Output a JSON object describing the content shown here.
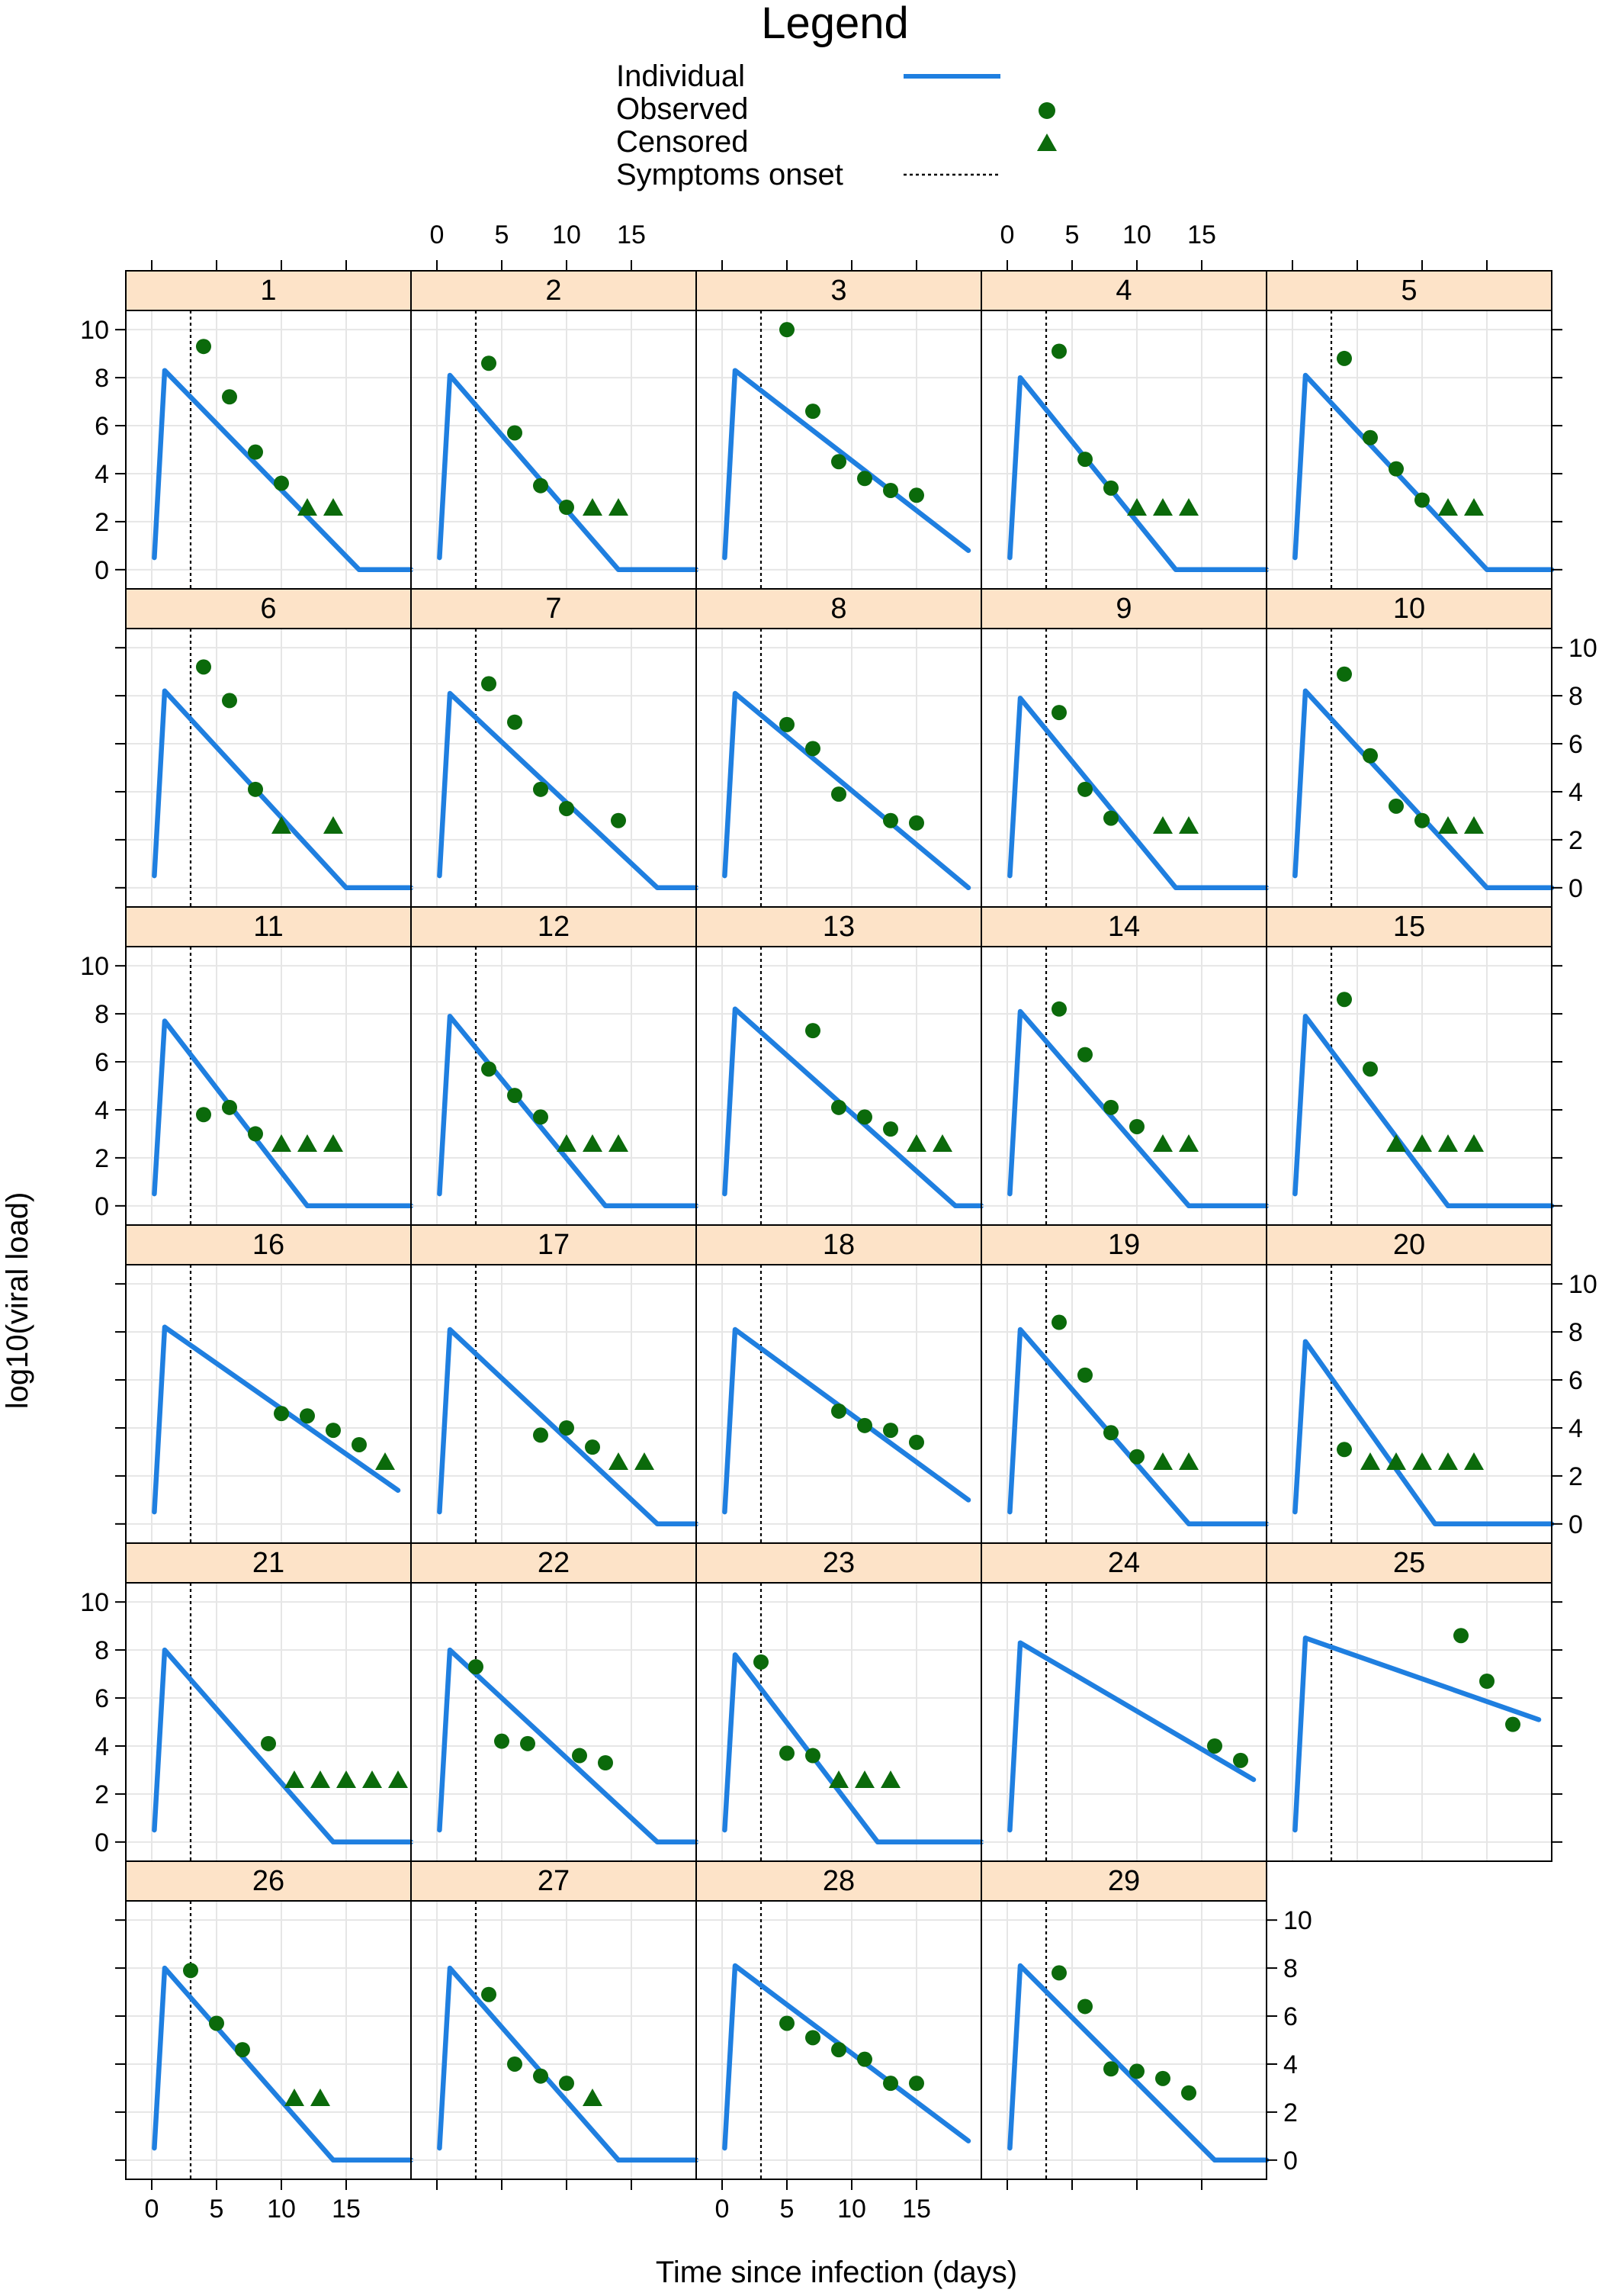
{
  "legend": {
    "title": "Legend",
    "items": [
      {
        "label": "Individual",
        "symbol": "line"
      },
      {
        "label": "Observed",
        "symbol": "circle"
      },
      {
        "label": "Censored",
        "symbol": "triangle"
      },
      {
        "label": "Symptoms onset",
        "symbol": "dotted-line"
      }
    ]
  },
  "axes": {
    "xlabel": "Time since infection (days)",
    "ylabel": "log10(viral load)",
    "xticks": [
      0,
      5,
      10,
      15
    ],
    "yticks": [
      0,
      2,
      4,
      6,
      8,
      10
    ],
    "xlim": [
      -2,
      20
    ],
    "ylim": [
      -0.8,
      10.8
    ]
  },
  "colors": {
    "individual": "#1f7fe0",
    "observed": "#0b6a0b",
    "strip": "#fde3c8",
    "grid": "#e6e6e6",
    "frame": "#000000"
  },
  "chart_data": {
    "type": "line",
    "layout": {
      "columns": 5,
      "rows": 6
    },
    "symptoms_onset_day": 3,
    "panels": [
      {
        "id": "1",
        "individual": [
          [
            0.2,
            0.5
          ],
          [
            1,
            8.3
          ],
          [
            16,
            0
          ],
          [
            20,
            0
          ]
        ],
        "observed": [
          [
            4,
            9.3
          ],
          [
            6,
            7.2
          ],
          [
            8,
            4.9
          ],
          [
            10,
            3.6
          ]
        ],
        "censored": [
          [
            12,
            2.6
          ],
          [
            14,
            2.6
          ]
        ]
      },
      {
        "id": "2",
        "individual": [
          [
            0.2,
            0.5
          ],
          [
            1,
            8.1
          ],
          [
            14,
            0
          ],
          [
            20,
            0
          ]
        ],
        "observed": [
          [
            4,
            8.6
          ],
          [
            6,
            5.7
          ],
          [
            8,
            3.5
          ],
          [
            10,
            2.6
          ]
        ],
        "censored": [
          [
            12,
            2.6
          ],
          [
            14,
            2.6
          ]
        ]
      },
      {
        "id": "3",
        "individual": [
          [
            0.2,
            0.5
          ],
          [
            1,
            8.3
          ],
          [
            19,
            0.8
          ]
        ],
        "observed": [
          [
            5,
            10
          ],
          [
            7,
            6.6
          ],
          [
            9,
            4.5
          ],
          [
            11,
            3.8
          ],
          [
            13,
            3.3
          ],
          [
            15,
            3.1
          ]
        ],
        "censored": []
      },
      {
        "id": "4",
        "individual": [
          [
            0.2,
            0.5
          ],
          [
            1,
            8.0
          ],
          [
            13,
            0
          ],
          [
            20,
            0
          ]
        ],
        "observed": [
          [
            4,
            9.1
          ],
          [
            6,
            4.6
          ],
          [
            8,
            3.4
          ]
        ],
        "censored": [
          [
            10,
            2.6
          ],
          [
            12,
            2.6
          ],
          [
            14,
            2.6
          ]
        ]
      },
      {
        "id": "5",
        "individual": [
          [
            0.2,
            0.5
          ],
          [
            1,
            8.1
          ],
          [
            15,
            0
          ],
          [
            20,
            0
          ]
        ],
        "observed": [
          [
            4,
            8.8
          ],
          [
            6,
            5.5
          ],
          [
            8,
            4.2
          ],
          [
            10,
            2.9
          ]
        ],
        "censored": [
          [
            12,
            2.6
          ],
          [
            14,
            2.6
          ]
        ]
      },
      {
        "id": "6",
        "individual": [
          [
            0.2,
            0.5
          ],
          [
            1,
            8.2
          ],
          [
            15,
            0
          ],
          [
            20,
            0
          ]
        ],
        "observed": [
          [
            4,
            9.2
          ],
          [
            6,
            7.8
          ],
          [
            8,
            4.1
          ]
        ],
        "censored": [
          [
            10,
            2.6
          ],
          [
            14,
            2.6
          ]
        ]
      },
      {
        "id": "7",
        "individual": [
          [
            0.2,
            0.5
          ],
          [
            1,
            8.1
          ],
          [
            17,
            0
          ],
          [
            20,
            0
          ]
        ],
        "observed": [
          [
            4,
            8.5
          ],
          [
            6,
            6.9
          ],
          [
            8,
            4.1
          ],
          [
            10,
            3.3
          ],
          [
            14,
            2.8
          ]
        ],
        "censored": []
      },
      {
        "id": "8",
        "individual": [
          [
            0.2,
            0.5
          ],
          [
            1,
            8.1
          ],
          [
            19,
            0
          ]
        ],
        "observed": [
          [
            5,
            6.8
          ],
          [
            7,
            5.8
          ],
          [
            9,
            3.9
          ],
          [
            13,
            2.8
          ],
          [
            15,
            2.7
          ]
        ],
        "censored": []
      },
      {
        "id": "9",
        "individual": [
          [
            0.2,
            0.5
          ],
          [
            1,
            7.9
          ],
          [
            13,
            0
          ],
          [
            20,
            0
          ]
        ],
        "observed": [
          [
            4,
            7.3
          ],
          [
            6,
            4.1
          ],
          [
            8,
            2.9
          ]
        ],
        "censored": [
          [
            12,
            2.6
          ],
          [
            14,
            2.6
          ]
        ]
      },
      {
        "id": "10",
        "individual": [
          [
            0.2,
            0.5
          ],
          [
            1,
            8.2
          ],
          [
            15,
            0
          ],
          [
            20,
            0
          ]
        ],
        "observed": [
          [
            4,
            8.9
          ],
          [
            6,
            5.5
          ],
          [
            8,
            3.4
          ],
          [
            10,
            2.8
          ]
        ],
        "censored": [
          [
            12,
            2.6
          ],
          [
            14,
            2.6
          ]
        ]
      },
      {
        "id": "11",
        "individual": [
          [
            0.2,
            0.5
          ],
          [
            1,
            7.7
          ],
          [
            12,
            0
          ],
          [
            20,
            0
          ]
        ],
        "observed": [
          [
            4,
            3.8
          ],
          [
            6,
            4.1
          ],
          [
            8,
            3.0
          ]
        ],
        "censored": [
          [
            10,
            2.6
          ],
          [
            12,
            2.6
          ],
          [
            14,
            2.6
          ]
        ]
      },
      {
        "id": "12",
        "individual": [
          [
            0.2,
            0.5
          ],
          [
            1,
            7.9
          ],
          [
            13,
            0
          ],
          [
            20,
            0
          ]
        ],
        "observed": [
          [
            4,
            5.7
          ],
          [
            6,
            4.6
          ],
          [
            8,
            3.7
          ]
        ],
        "censored": [
          [
            10,
            2.6
          ],
          [
            12,
            2.6
          ],
          [
            14,
            2.6
          ]
        ]
      },
      {
        "id": "13",
        "individual": [
          [
            0.2,
            0.5
          ],
          [
            1,
            8.2
          ],
          [
            18,
            0
          ],
          [
            20,
            0
          ]
        ],
        "observed": [
          [
            7,
            7.3
          ],
          [
            9,
            4.1
          ],
          [
            11,
            3.7
          ],
          [
            13,
            3.2
          ]
        ],
        "censored": [
          [
            15,
            2.6
          ],
          [
            17,
            2.6
          ]
        ]
      },
      {
        "id": "14",
        "individual": [
          [
            0.2,
            0.5
          ],
          [
            1,
            8.1
          ],
          [
            14,
            0
          ],
          [
            20,
            0
          ]
        ],
        "observed": [
          [
            4,
            8.2
          ],
          [
            6,
            6.3
          ],
          [
            8,
            4.1
          ],
          [
            10,
            3.3
          ]
        ],
        "censored": [
          [
            12,
            2.6
          ],
          [
            14,
            2.6
          ]
        ]
      },
      {
        "id": "15",
        "individual": [
          [
            0.2,
            0.5
          ],
          [
            1,
            7.9
          ],
          [
            12,
            0
          ],
          [
            20,
            0
          ]
        ],
        "observed": [
          [
            4,
            8.6
          ],
          [
            6,
            5.7
          ]
        ],
        "censored": [
          [
            8,
            2.6
          ],
          [
            10,
            2.6
          ],
          [
            12,
            2.6
          ],
          [
            14,
            2.6
          ]
        ]
      },
      {
        "id": "16",
        "individual": [
          [
            0.2,
            0.5
          ],
          [
            1,
            8.2
          ],
          [
            19,
            1.4
          ]
        ],
        "observed": [
          [
            10,
            4.6
          ],
          [
            12,
            4.5
          ],
          [
            14,
            3.9
          ],
          [
            16,
            3.3
          ]
        ],
        "censored": [
          [
            18,
            2.6
          ]
        ]
      },
      {
        "id": "17",
        "individual": [
          [
            0.2,
            0.5
          ],
          [
            1,
            8.1
          ],
          [
            17,
            0
          ],
          [
            20,
            0
          ]
        ],
        "observed": [
          [
            8,
            3.7
          ],
          [
            10,
            4.0
          ],
          [
            12,
            3.2
          ]
        ],
        "censored": [
          [
            14,
            2.6
          ],
          [
            16,
            2.6
          ]
        ]
      },
      {
        "id": "18",
        "individual": [
          [
            0.2,
            0.5
          ],
          [
            1,
            8.1
          ],
          [
            19,
            1.0
          ]
        ],
        "observed": [
          [
            9,
            4.7
          ],
          [
            11,
            4.1
          ],
          [
            13,
            3.9
          ],
          [
            15,
            3.4
          ]
        ],
        "censored": []
      },
      {
        "id": "19",
        "individual": [
          [
            0.2,
            0.5
          ],
          [
            1,
            8.1
          ],
          [
            14,
            0
          ],
          [
            20,
            0
          ]
        ],
        "observed": [
          [
            4,
            8.4
          ],
          [
            6,
            6.2
          ],
          [
            8,
            3.8
          ],
          [
            10,
            2.8
          ]
        ],
        "censored": [
          [
            12,
            2.6
          ],
          [
            14,
            2.6
          ]
        ]
      },
      {
        "id": "20",
        "individual": [
          [
            0.2,
            0.5
          ],
          [
            1,
            7.6
          ],
          [
            11,
            0
          ],
          [
            20,
            0
          ]
        ],
        "observed": [
          [
            4,
            3.1
          ]
        ],
        "censored": [
          [
            6,
            2.6
          ],
          [
            8,
            2.6
          ],
          [
            10,
            2.6
          ],
          [
            12,
            2.6
          ],
          [
            14,
            2.6
          ]
        ]
      },
      {
        "id": "21",
        "individual": [
          [
            0.2,
            0.5
          ],
          [
            1,
            8.0
          ],
          [
            14,
            0
          ],
          [
            20,
            0
          ]
        ],
        "observed": [
          [
            9,
            4.1
          ]
        ],
        "censored": [
          [
            11,
            2.6
          ],
          [
            13,
            2.6
          ],
          [
            15,
            2.6
          ],
          [
            17,
            2.6
          ],
          [
            19,
            2.6
          ]
        ]
      },
      {
        "id": "22",
        "individual": [
          [
            0.2,
            0.5
          ],
          [
            1,
            8.0
          ],
          [
            17,
            0
          ],
          [
            20,
            0
          ]
        ],
        "observed": [
          [
            3,
            7.3
          ],
          [
            5,
            4.2
          ],
          [
            7,
            4.1
          ],
          [
            11,
            3.6
          ],
          [
            13,
            3.3
          ]
        ],
        "censored": []
      },
      {
        "id": "23",
        "individual": [
          [
            0.2,
            0.5
          ],
          [
            1,
            7.8
          ],
          [
            12,
            0
          ],
          [
            20,
            0
          ]
        ],
        "observed": [
          [
            3,
            7.5
          ],
          [
            5,
            3.7
          ],
          [
            7,
            3.6
          ]
        ],
        "censored": [
          [
            9,
            2.6
          ],
          [
            11,
            2.6
          ],
          [
            13,
            2.6
          ]
        ]
      },
      {
        "id": "24",
        "individual": [
          [
            0.2,
            0.5
          ],
          [
            1,
            8.3
          ],
          [
            19,
            2.6
          ]
        ],
        "observed": [
          [
            16,
            4.0
          ],
          [
            18,
            3.4
          ]
        ],
        "censored": []
      },
      {
        "id": "25",
        "individual": [
          [
            0.2,
            0.5
          ],
          [
            1,
            8.5
          ],
          [
            19,
            5.1
          ]
        ],
        "observed": [
          [
            13,
            8.6
          ],
          [
            15,
            6.7
          ],
          [
            17,
            4.9
          ]
        ],
        "censored": []
      },
      {
        "id": "26",
        "individual": [
          [
            0.2,
            0.5
          ],
          [
            1,
            8.0
          ],
          [
            14,
            0
          ],
          [
            20,
            0
          ]
        ],
        "observed": [
          [
            3,
            7.9
          ],
          [
            5,
            5.7
          ],
          [
            7,
            4.6
          ]
        ],
        "censored": [
          [
            11,
            2.6
          ],
          [
            13,
            2.6
          ]
        ]
      },
      {
        "id": "27",
        "individual": [
          [
            0.2,
            0.5
          ],
          [
            1,
            8.0
          ],
          [
            14,
            0
          ],
          [
            20,
            0
          ]
        ],
        "observed": [
          [
            4,
            6.9
          ],
          [
            6,
            4.0
          ],
          [
            8,
            3.5
          ],
          [
            10,
            3.2
          ]
        ],
        "censored": [
          [
            12,
            2.6
          ]
        ]
      },
      {
        "id": "28",
        "individual": [
          [
            0.2,
            0.5
          ],
          [
            1,
            8.1
          ],
          [
            19,
            0.8
          ]
        ],
        "observed": [
          [
            5,
            5.7
          ],
          [
            7,
            5.1
          ],
          [
            9,
            4.6
          ],
          [
            11,
            4.2
          ],
          [
            13,
            3.2
          ],
          [
            15,
            3.2
          ]
        ],
        "censored": []
      },
      {
        "id": "29",
        "individual": [
          [
            0.2,
            0.5
          ],
          [
            1,
            8.1
          ],
          [
            16,
            0
          ],
          [
            20,
            0
          ]
        ],
        "observed": [
          [
            4,
            7.8
          ],
          [
            6,
            6.4
          ],
          [
            8,
            3.8
          ],
          [
            10,
            3.7
          ],
          [
            12,
            3.4
          ],
          [
            14,
            2.8
          ]
        ],
        "censored": []
      }
    ]
  }
}
